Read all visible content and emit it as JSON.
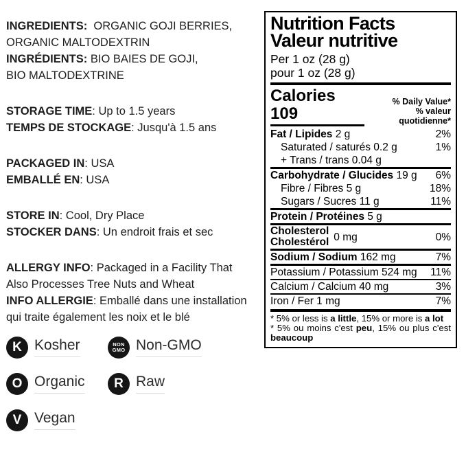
{
  "info_sections": [
    {
      "lines": [
        {
          "bold": "INGREDIENTS:",
          "rest": "  ORGANIC GOJI BERRIES,"
        },
        {
          "bold": "",
          "rest": "ORGANIC MALTODEXTRIN"
        },
        {
          "bold": "INGRÉDIENTS:",
          "rest": " BIO BAIES DE GOJI,"
        },
        {
          "bold": "",
          "rest": "BIO MALTODEXTRINE"
        }
      ]
    },
    {
      "lines": [
        {
          "bold": "STORAGE TIME",
          "rest": ": Up to 1.5 years"
        },
        {
          "bold": "TEMPS DE STOCKAGE",
          "rest": ": Jusqu'à 1.5 ans"
        }
      ]
    },
    {
      "lines": [
        {
          "bold": "PACKAGED IN",
          "rest": ": USA"
        },
        {
          "bold": "EMBALLÉ EN",
          "rest": ": USA"
        }
      ]
    },
    {
      "lines": [
        {
          "bold": "STORE IN",
          "rest": ": Cool, Dry Place"
        },
        {
          "bold": "STOCKER DANS",
          "rest": ": Un endroit frais et sec"
        }
      ]
    },
    {
      "lines": [
        {
          "bold": "ALLERGY INFO",
          "rest": ": Packaged in a Facility That"
        },
        {
          "bold": "",
          "rest": "Also Processes Tree Nuts and Wheat"
        },
        {
          "bold": "INFO ALLERGIE",
          "rest": ": Emballé dans une installation"
        },
        {
          "bold": "",
          "rest": "qui traite également les noix et le blé"
        }
      ]
    }
  ],
  "badges": [
    {
      "icon_name": "kosher-icon",
      "icon_lines": [
        "K"
      ],
      "label": "Kosher"
    },
    {
      "icon_name": "non-gmo-icon",
      "icon_lines": [
        "NON",
        "GMO"
      ],
      "label": "Non-GMO"
    },
    {
      "icon_name": "organic-icon",
      "icon_lines": [
        "O"
      ],
      "label": "Organic"
    },
    {
      "icon_name": "raw-icon",
      "icon_lines": [
        "R"
      ],
      "label": "Raw"
    },
    {
      "icon_name": "vegan-icon",
      "icon_lines": [
        "V"
      ],
      "label": "Vegan"
    }
  ],
  "badge_colors": {
    "circle": "#161616",
    "letter": "#ffffff",
    "underline": "#dcdcdc"
  },
  "nutrition": {
    "title_en": "Nutrition Facts",
    "title_fr": "Valeur nutritive",
    "serving_en": "Per 1 oz (28 g)",
    "serving_fr": "pour 1 oz (28 g)",
    "calories_label": "Calories",
    "calories_value": "109",
    "calories_display": "Calories 109",
    "dv_header_en": "% Daily Value*",
    "dv_header_fr": "% valeur quotidienne*",
    "rows": [
      {
        "style": "major",
        "sep": "none",
        "bold": "Fat / Lipides",
        "rest": " 2 g",
        "pct": "2%"
      },
      {
        "style": "sub",
        "sep": "none",
        "bold": "",
        "rest": "Saturated / saturés 0.2 g",
        "pct": "1%"
      },
      {
        "style": "sub",
        "sep": "none",
        "bold": "",
        "rest": "+ Trans / trans 0.04 g",
        "pct": ""
      },
      {
        "style": "major",
        "sep": "major",
        "bold": "Carbohydrate / Glucides",
        "rest": " 19 g",
        "pct": "6%"
      },
      {
        "style": "sub",
        "sep": "none",
        "bold": "",
        "rest": "Fibre / Fibres 5 g",
        "pct": "18%"
      },
      {
        "style": "sub",
        "sep": "none",
        "bold": "",
        "rest": "Sugars / Sucres 11 g",
        "pct": "11%"
      },
      {
        "style": "major",
        "sep": "major",
        "bold": "Protein / Protéines",
        "rest": " 5 g",
        "pct": ""
      },
      {
        "style": "stacked",
        "sep": "major",
        "bold_lines": [
          "Cholesterol",
          "Cholestérol"
        ],
        "rest": "0 mg",
        "pct": "0%"
      },
      {
        "style": "major",
        "sep": "major",
        "bold": "Sodium / Sodium",
        "rest": " 162 mg",
        "pct": "7%"
      },
      {
        "style": "plain",
        "sep": "major",
        "bold": "",
        "rest": "Potassium / Potassium 524 mg",
        "pct": "11%"
      },
      {
        "style": "plain",
        "sep": "minor",
        "bold": "",
        "rest": "Calcium / Calcium 40 mg",
        "pct": "3%"
      },
      {
        "style": "plain",
        "sep": "minor",
        "bold": "",
        "rest": "Iron / Fer 1 mg",
        "pct": "7%"
      }
    ],
    "footnote_en": [
      {
        "t": "* 5% or less is ",
        "b": false
      },
      {
        "t": "a little",
        "b": true
      },
      {
        "t": ", 15% or more is ",
        "b": false
      },
      {
        "t": "a lot",
        "b": true
      }
    ],
    "footnote_fr": [
      {
        "t": "* 5% ou moins c'est ",
        "b": false
      },
      {
        "t": "peu",
        "b": true
      },
      {
        "t": ", 15% ou plus c'est ",
        "b": false
      },
      {
        "t": "beaucoup",
        "b": true
      }
    ]
  }
}
